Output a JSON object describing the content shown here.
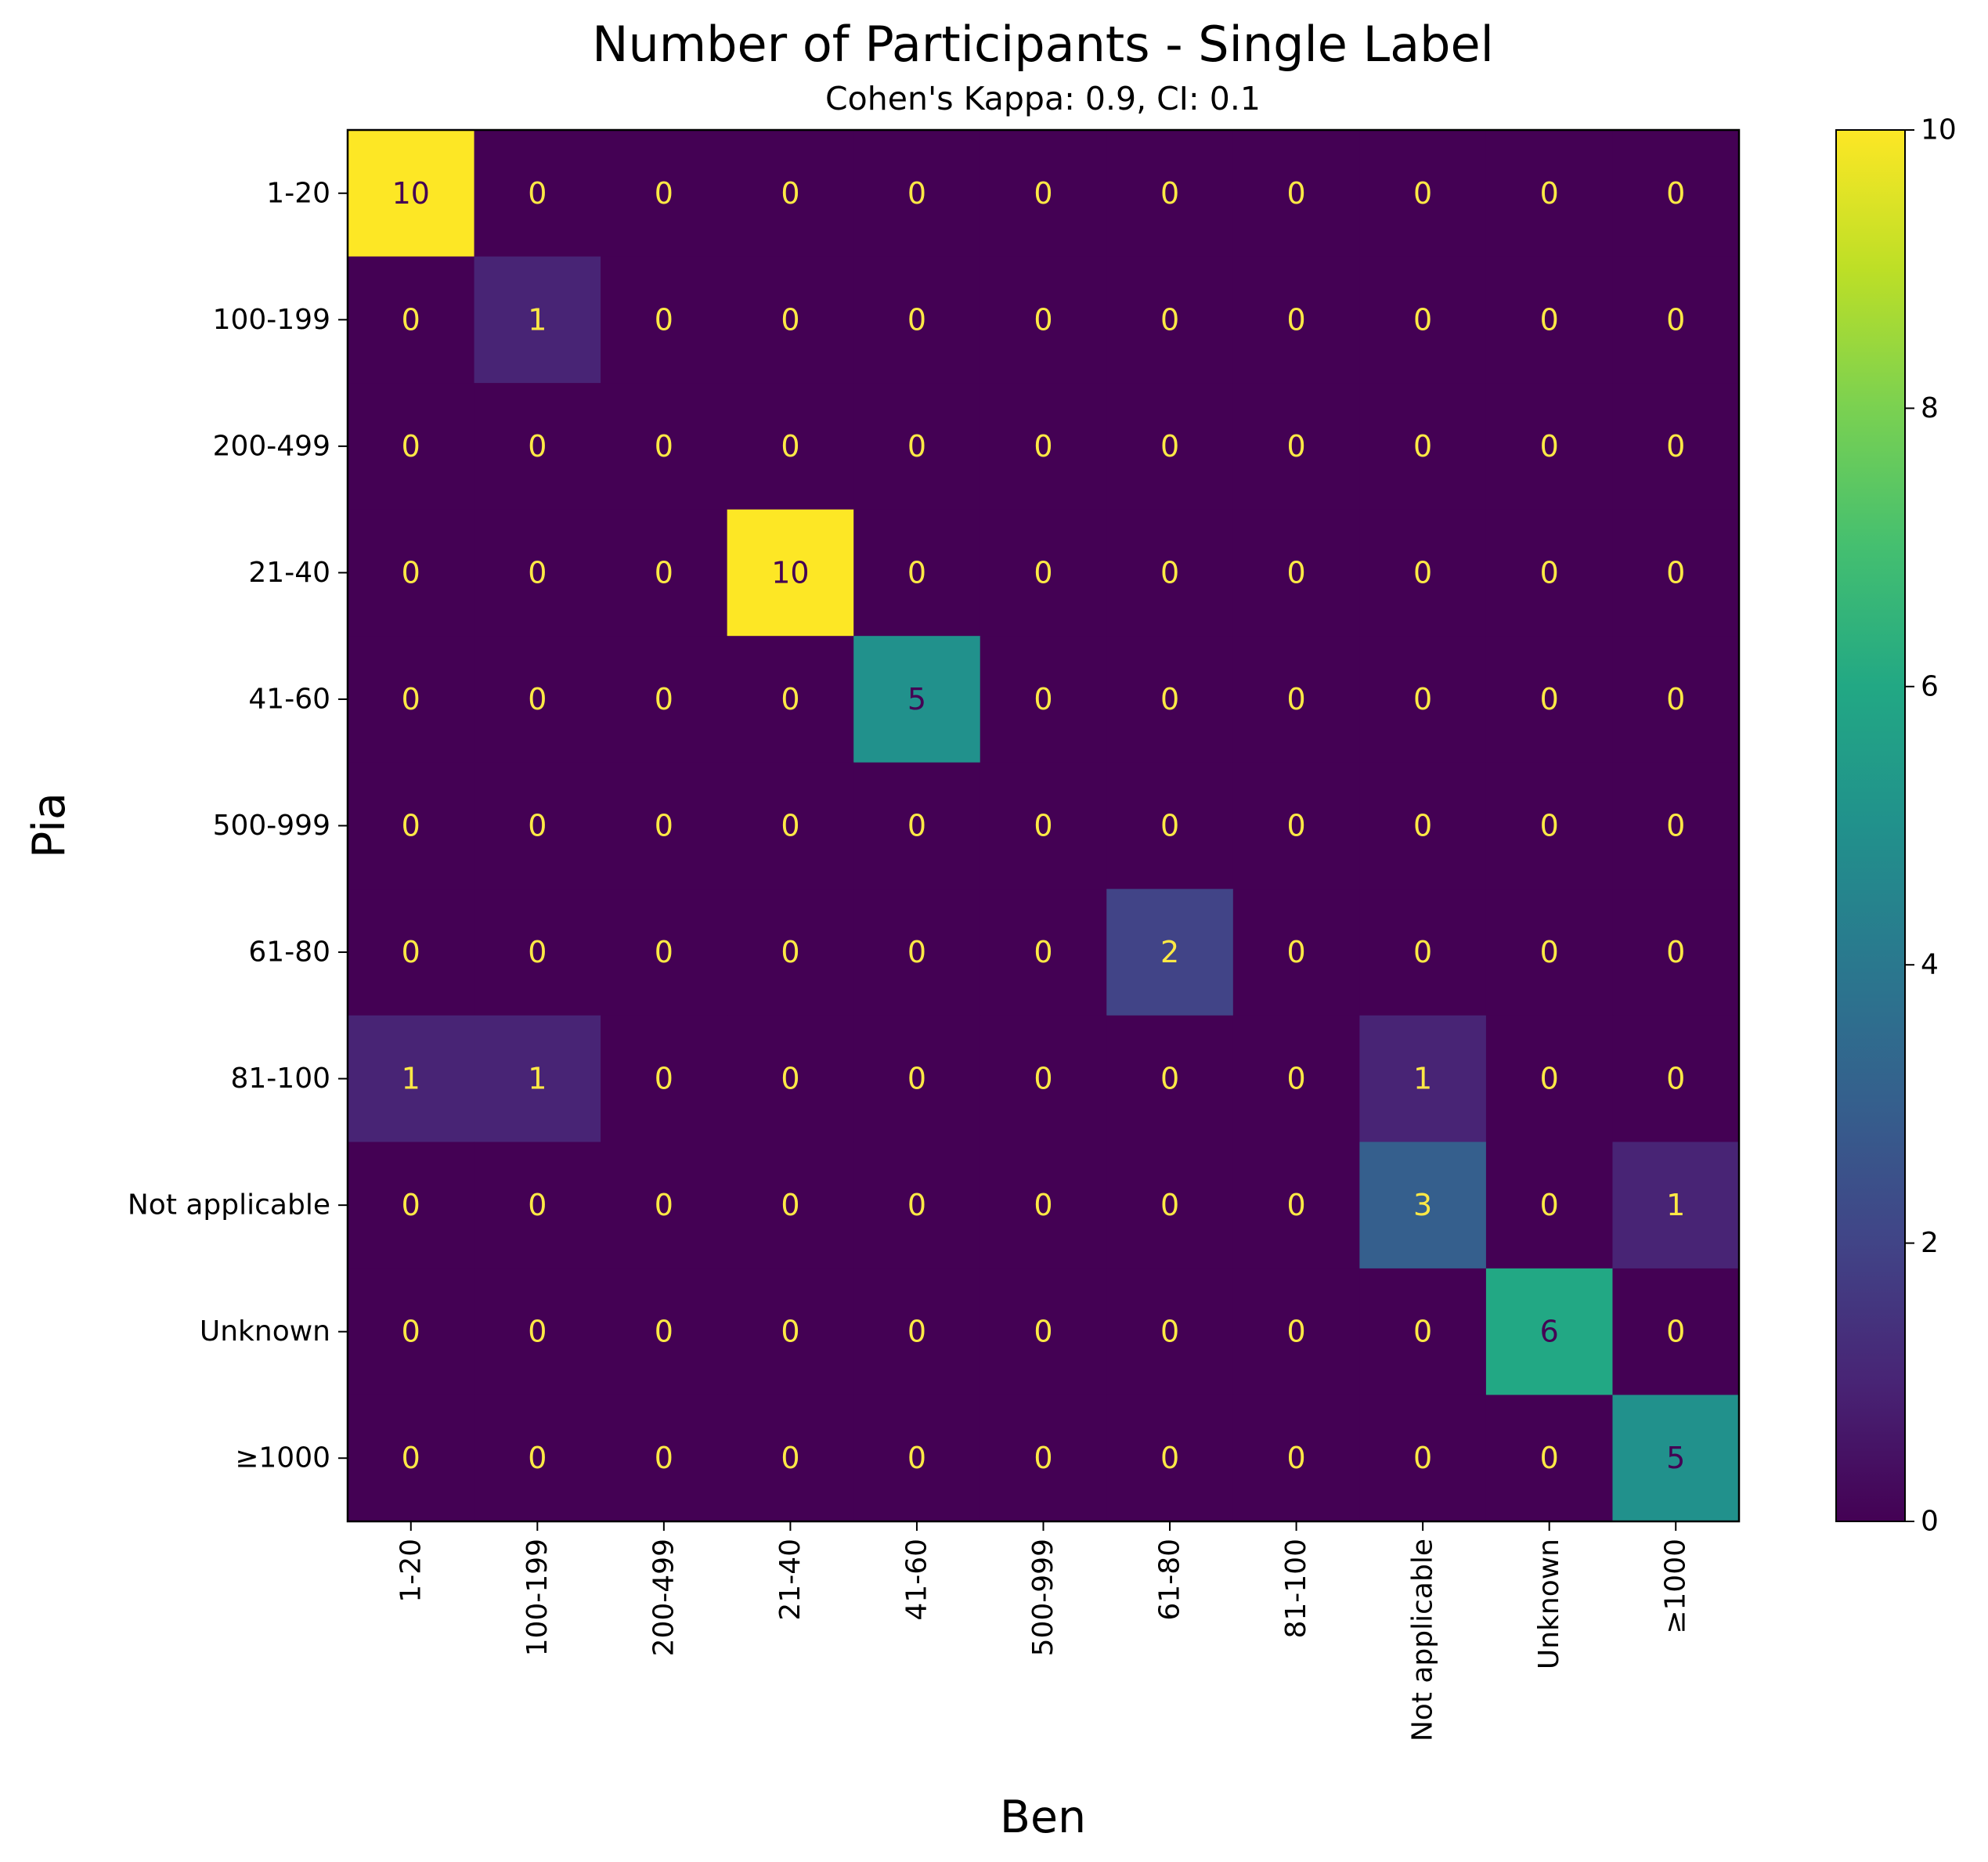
{
  "chart_data": {
    "type": "heatmap",
    "title": "Number of Participants - Single Label",
    "subtitle": "Cohen's Kappa: 0.9, CI: 0.1",
    "xlabel": "Ben",
    "ylabel": "Pia",
    "x_categories": [
      "1-20",
      "100-199",
      "200-499",
      "21-40",
      "41-60",
      "500-999",
      "61-80",
      "81-100",
      "Not applicable",
      "Unknown",
      "≥1000"
    ],
    "y_categories": [
      "1-20",
      "100-199",
      "200-499",
      "21-40",
      "41-60",
      "500-999",
      "61-80",
      "81-100",
      "Not applicable",
      "Unknown",
      "≥1000"
    ],
    "values": [
      [
        10,
        0,
        0,
        0,
        0,
        0,
        0,
        0,
        0,
        0,
        0
      ],
      [
        0,
        1,
        0,
        0,
        0,
        0,
        0,
        0,
        0,
        0,
        0
      ],
      [
        0,
        0,
        0,
        0,
        0,
        0,
        0,
        0,
        0,
        0,
        0
      ],
      [
        0,
        0,
        0,
        10,
        0,
        0,
        0,
        0,
        0,
        0,
        0
      ],
      [
        0,
        0,
        0,
        0,
        5,
        0,
        0,
        0,
        0,
        0,
        0
      ],
      [
        0,
        0,
        0,
        0,
        0,
        0,
        0,
        0,
        0,
        0,
        0
      ],
      [
        0,
        0,
        0,
        0,
        0,
        0,
        2,
        0,
        0,
        0,
        0
      ],
      [
        1,
        1,
        0,
        0,
        0,
        0,
        0,
        0,
        1,
        0,
        0
      ],
      [
        0,
        0,
        0,
        0,
        0,
        0,
        0,
        0,
        3,
        0,
        1
      ],
      [
        0,
        0,
        0,
        0,
        0,
        0,
        0,
        0,
        0,
        6,
        0
      ],
      [
        0,
        0,
        0,
        0,
        0,
        0,
        0,
        0,
        0,
        0,
        5
      ]
    ],
    "colorbar": {
      "min": 0,
      "max": 10,
      "ticks": [
        0,
        2,
        4,
        6,
        8,
        10
      ]
    },
    "colormap": "viridis",
    "colors": {
      "cell_text_light": "#ffe945",
      "cell_text_dark": "#440154",
      "axes": "#000000"
    }
  }
}
